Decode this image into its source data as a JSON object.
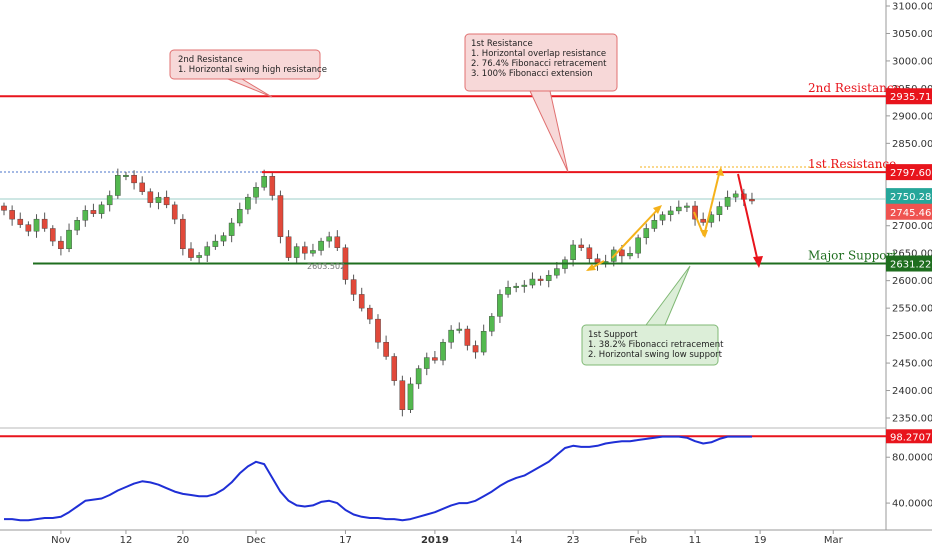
{
  "chart_data": {
    "type": "candlestick",
    "price_axis": {
      "ylim": [
        2330,
        3110
      ],
      "ticks": [
        3100,
        3050,
        3000,
        2950,
        2900,
        2850,
        2800,
        2750,
        2700,
        2650,
        2600,
        2550,
        2500,
        2450,
        2400,
        2350
      ]
    },
    "x_ticks": [
      {
        "label": "Nov",
        "bar": 7
      },
      {
        "label": "12",
        "bar": 15
      },
      {
        "label": "20",
        "bar": 22
      },
      {
        "label": "Dec",
        "bar": 31
      },
      {
        "label": "17",
        "bar": 42
      },
      {
        "label": "2019",
        "bar": 53
      },
      {
        "label": "14",
        "bar": 63
      },
      {
        "label": "23",
        "bar": 70
      },
      {
        "label": "Feb",
        "bar": 78
      },
      {
        "label": "11",
        "bar": 85
      },
      {
        "label": "19",
        "bar": 93
      },
      {
        "label": "Mar",
        "bar": 102
      }
    ],
    "closes": [
      2728,
      2712,
      2702,
      2690,
      2712,
      2695,
      2672,
      2658,
      2692,
      2710,
      2728,
      2722,
      2738,
      2755,
      2792,
      2792,
      2778,
      2762,
      2742,
      2752,
      2738,
      2712,
      2658,
      2642,
      2646,
      2662,
      2672,
      2682,
      2705,
      2730,
      2752,
      2770,
      2790,
      2755,
      2680,
      2642,
      2662,
      2650,
      2655,
      2672,
      2680,
      2660,
      2602,
      2575,
      2550,
      2530,
      2488,
      2462,
      2418,
      2365,
      2412,
      2440,
      2460,
      2455,
      2488,
      2510,
      2512,
      2482,
      2470,
      2508,
      2535,
      2575,
      2588,
      2590,
      2592,
      2603,
      2600,
      2610,
      2622,
      2638,
      2665,
      2660,
      2640,
      2630,
      2635,
      2656,
      2645,
      2650,
      2678,
      2695,
      2710,
      2720,
      2727,
      2734,
      2736,
      2712,
      2706,
      2720,
      2735,
      2752,
      2758,
      2748,
      2745
    ],
    "series_note": "S&P 500 Index, daily candles (values estimated from chart)",
    "levels": [
      {
        "name": "2nd Resistance",
        "value": 2935.71,
        "label": "2935.71",
        "color": "#e8141c"
      },
      {
        "name": "1st Resistance",
        "value": 2797.6,
        "label": "2797.60",
        "color": "#e8141c"
      },
      {
        "name": "Major Support",
        "value": 2631.22,
        "label": "2631.22",
        "color": "#1f6e1f"
      }
    ],
    "last_price_tags": [
      {
        "value": 2750.28,
        "label": "2750.28",
        "color": "#26a69a"
      },
      {
        "value": 2745.46,
        "label": "2745.46",
        "color": "#ef5350"
      }
    ],
    "swing_low_label": "2603.502",
    "annotations": {
      "second_resistance": [
        "2nd Resistance",
        "1. Horizontal swing high resistance"
      ],
      "first_resistance": [
        "1st Resistance",
        "1. Horizontal overlap resistance",
        "2. 76.4% Fibonacci retracement",
        "3. 100% Fibonacci extension"
      ],
      "first_support": [
        "1st Support",
        "1. 38.2% Fibonacci retracement",
        "2. Horizontal swing low support"
      ]
    },
    "oscillator": {
      "ylim": [
        20,
        102
      ],
      "ticks": [
        {
          "value": 80,
          "label": "80.0000"
        },
        {
          "value": 40,
          "label": "40.0000"
        }
      ],
      "threshold": 98.2707,
      "threshold_label": "98.2707",
      "line_color": "#1f2fd6",
      "values": [
        26,
        26,
        25,
        25,
        26,
        27,
        27,
        28,
        32,
        37,
        42,
        43,
        44,
        47,
        51,
        54,
        57,
        59,
        58,
        56,
        53,
        50,
        48,
        47,
        46,
        46,
        48,
        52,
        58,
        66,
        72,
        76,
        74,
        62,
        50,
        42,
        38,
        37,
        38,
        41,
        42,
        40,
        34,
        30,
        28,
        27,
        27,
        26,
        26,
        25,
        26,
        28,
        30,
        32,
        35,
        38,
        40,
        40,
        42,
        46,
        50,
        55,
        59,
        62,
        64,
        68,
        72,
        76,
        82,
        88,
        90,
        89,
        89,
        90,
        92,
        93,
        94,
        94,
        95,
        96,
        97,
        98,
        98,
        98,
        97,
        94,
        92,
        93,
        96,
        98,
        98,
        98,
        98
      ]
    }
  },
  "colors": {
    "up": "#53b84f",
    "down": "#e1493a",
    "wick": "#555555",
    "arrow_orange": "#f5b21b",
    "arrow_red": "#e8141c"
  }
}
